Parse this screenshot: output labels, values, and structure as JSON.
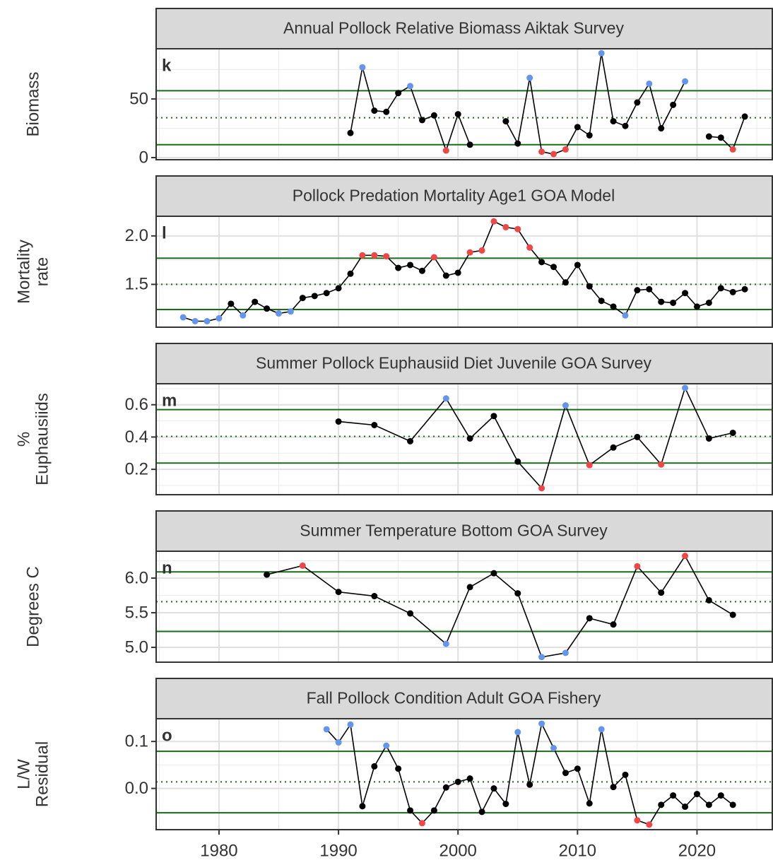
{
  "chart_data": [
    {
      "type": "line",
      "title": "Annual Pollock Relative Biomass Aiktak Survey",
      "annotation": "k",
      "ylabel": [
        "Biomass"
      ],
      "x": [
        1991,
        1992,
        1993,
        1994,
        1995,
        1996,
        1997,
        1998,
        1999,
        2000,
        2001,
        2002,
        2003,
        2004,
        2005,
        2006,
        2007,
        2008,
        2009,
        2010,
        2011,
        2012,
        2013,
        2014,
        2015,
        2016,
        2017,
        2018,
        2019,
        2020,
        2021,
        2022,
        2023,
        2024
      ],
      "values": [
        21,
        77,
        40,
        39,
        55,
        61,
        32,
        36,
        6,
        37,
        11,
        null,
        null,
        31,
        12,
        68,
        5,
        3,
        7,
        26,
        19,
        89,
        31,
        27,
        47,
        63,
        25,
        45,
        65,
        null,
        18,
        17,
        7,
        35
      ],
      "point_colors": [
        "#000000",
        "#6495ED",
        "#000000",
        "#000000",
        "#000000",
        "#6495ED",
        "#000000",
        "#000000",
        "#F04646",
        "#000000",
        "#000000",
        null,
        null,
        "#000000",
        "#000000",
        "#6495ED",
        "#F04646",
        "#F04646",
        "#F04646",
        "#000000",
        "#000000",
        "#6495ED",
        "#000000",
        "#000000",
        "#000000",
        "#6495ED",
        "#000000",
        "#000000",
        "#6495ED",
        null,
        "#000000",
        "#000000",
        "#F04646",
        "#000000"
      ],
      "upper": 57,
      "mean": 34,
      "lower": 11,
      "ref_color": "#1a6b1a",
      "color": "#000000",
      "xlim": [
        1974.74,
        2026.3
      ],
      "xticks": [
        1980,
        1990,
        2000,
        2010,
        2020
      ],
      "ylim": [
        -1.8,
        92.8
      ],
      "yticks": [
        0,
        50
      ],
      "grid": true
    },
    {
      "type": "line",
      "title": "Pollock Predation Mortality Age1 GOA Model",
      "annotation": "l",
      "ylabel": [
        "Mortality",
        "rate"
      ],
      "x": [
        1977,
        1978,
        1979,
        1980,
        1981,
        1982,
        1983,
        1984,
        1985,
        1986,
        1987,
        1988,
        1989,
        1990,
        1991,
        1992,
        1993,
        1994,
        1995,
        1996,
        1997,
        1998,
        1999,
        2000,
        2001,
        2002,
        2003,
        2004,
        2005,
        2006,
        2007,
        2008,
        2009,
        2010,
        2011,
        2012,
        2013,
        2014,
        2015,
        2016,
        2017,
        2018,
        2019,
        2020,
        2021,
        2022,
        2023,
        2024
      ],
      "values": [
        1.16,
        1.12,
        1.12,
        1.15,
        1.3,
        1.18,
        1.32,
        1.25,
        1.2,
        1.22,
        1.36,
        1.38,
        1.41,
        1.46,
        1.61,
        1.8,
        1.8,
        1.79,
        1.67,
        1.7,
        1.64,
        1.78,
        1.59,
        1.62,
        1.83,
        1.85,
        2.15,
        2.09,
        2.07,
        1.88,
        1.73,
        1.68,
        1.52,
        1.7,
        1.48,
        1.33,
        1.27,
        1.18,
        1.44,
        1.45,
        1.32,
        1.31,
        1.41,
        1.27,
        1.31,
        1.46,
        1.42,
        1.45
      ],
      "point_colors": [
        "#6495ED",
        "#6495ED",
        "#6495ED",
        "#6495ED",
        "#000000",
        "#6495ED",
        "#000000",
        "#000000",
        "#6495ED",
        "#6495ED",
        "#000000",
        "#000000",
        "#000000",
        "#000000",
        "#000000",
        "#F04646",
        "#F04646",
        "#F04646",
        "#000000",
        "#000000",
        "#000000",
        "#F04646",
        "#000000",
        "#000000",
        "#F04646",
        "#F04646",
        "#F04646",
        "#F04646",
        "#F04646",
        "#F04646",
        "#000000",
        "#000000",
        "#000000",
        "#000000",
        "#000000",
        "#000000",
        "#000000",
        "#6495ED",
        "#000000",
        "#000000",
        "#000000",
        "#000000",
        "#000000",
        "#000000",
        "#000000",
        "#000000",
        "#000000",
        "#000000"
      ],
      "upper": 1.77,
      "mean": 1.5,
      "lower": 1.24,
      "ref_color": "#1a6b1a",
      "color": "#000000",
      "xlim": [
        1974.74,
        2026.3
      ],
      "xticks": [
        1980,
        1990,
        2000,
        2010,
        2020
      ],
      "ylim": [
        1.058,
        2.203
      ],
      "yticks": [
        1.5,
        {
          "value": 2,
          "label": "2.0"
        }
      ],
      "grid": true
    },
    {
      "type": "line",
      "title": "Summer Pollock Euphausiid Diet Juvenile GOA Survey",
      "annotation": "m",
      "ylabel": [
        "%",
        "Euphausiids"
      ],
      "x": [
        1990,
        1993,
        1996,
        1999,
        2001,
        2003,
        2005,
        2007,
        2009,
        2011,
        2013,
        2015,
        2017,
        2019,
        2021,
        2023
      ],
      "values": [
        0.496,
        0.474,
        0.374,
        0.639,
        0.391,
        0.53,
        0.248,
        0.083,
        0.596,
        0.226,
        0.335,
        0.4,
        0.23,
        0.704,
        0.391,
        0.426
      ],
      "point_colors": [
        "#000000",
        "#000000",
        "#000000",
        "#6495ED",
        "#000000",
        "#000000",
        "#000000",
        "#F04646",
        "#6495ED",
        "#F04646",
        "#000000",
        "#000000",
        "#F04646",
        "#6495ED",
        "#000000",
        "#000000"
      ],
      "upper": 0.57,
      "mean": 0.404,
      "lower": 0.239,
      "ref_color": "#1a6b1a",
      "color": "#000000",
      "xlim": [
        1974.74,
        2026.3
      ],
      "xticks": [
        1980,
        1990,
        2000,
        2010,
        2020
      ],
      "ylim": [
        0.043,
        0.73
      ],
      "yticks": [
        0.2,
        0.4,
        0.6
      ],
      "grid": true
    },
    {
      "type": "line",
      "title": "Summer Temperature Bottom GOA Survey",
      "annotation": "n",
      "ylabel": [
        "Degrees C"
      ],
      "x": [
        1984,
        1987,
        1990,
        1993,
        1996,
        1999,
        2001,
        2003,
        2005,
        2007,
        2009,
        2011,
        2013,
        2015,
        2017,
        2019,
        2021,
        2023
      ],
      "values": [
        6.05,
        6.18,
        5.8,
        5.74,
        5.49,
        5.05,
        5.87,
        6.07,
        5.78,
        4.86,
        4.92,
        5.42,
        5.33,
        6.17,
        5.79,
        6.32,
        5.68,
        5.47
      ],
      "point_colors": [
        "#000000",
        "#F04646",
        "#000000",
        "#000000",
        "#000000",
        "#6495ED",
        "#000000",
        "#000000",
        "#000000",
        "#6495ED",
        "#6495ED",
        "#000000",
        "#000000",
        "#F04646",
        "#000000",
        "#F04646",
        "#000000",
        "#000000"
      ],
      "upper": 6.09,
      "mean": 5.66,
      "lower": 5.23,
      "ref_color": "#1a6b1a",
      "color": "#000000",
      "xlim": [
        1974.74,
        2026.3
      ],
      "xticks": [
        1980,
        1990,
        2000,
        2010,
        2020
      ],
      "ylim": [
        4.786,
        6.388
      ],
      "yticks": [
        {
          "value": 5,
          "label": "5.0"
        },
        5.5,
        {
          "value": 6,
          "label": "6.0"
        }
      ],
      "grid": true
    },
    {
      "type": "line",
      "title": "Fall Pollock Condition Adult GOA Fishery",
      "annotation": "o",
      "ylabel": [
        "L/W",
        "Residual"
      ],
      "x": [
        1989,
        1990,
        1991,
        1992,
        1993,
        1994,
        1995,
        1996,
        1997,
        1998,
        1999,
        2000,
        2001,
        2002,
        2003,
        2004,
        2005,
        2006,
        2007,
        2008,
        2009,
        2010,
        2011,
        2012,
        2013,
        2014,
        2015,
        2016,
        2017,
        2018,
        2019,
        2020,
        2021,
        2022,
        2023
      ],
      "values": [
        0.126,
        0.098,
        0.136,
        -0.038,
        0.047,
        0.091,
        0.042,
        -0.047,
        -0.074,
        -0.047,
        0.002,
        0.014,
        0.021,
        -0.05,
        0.0,
        -0.033,
        0.12,
        0.008,
        0.138,
        0.086,
        0.033,
        0.042,
        -0.032,
        0.126,
        0.003,
        0.029,
        -0.068,
        -0.077,
        -0.035,
        -0.015,
        -0.039,
        -0.012,
        -0.035,
        -0.015,
        -0.035
      ],
      "point_colors": [
        "#6495ED",
        "#6495ED",
        "#6495ED",
        "#000000",
        "#000000",
        "#6495ED",
        "#000000",
        "#000000",
        "#F04646",
        "#000000",
        "#000000",
        "#000000",
        "#000000",
        "#000000",
        "#000000",
        "#000000",
        "#6495ED",
        "#000000",
        "#6495ED",
        "#6495ED",
        "#000000",
        "#000000",
        "#000000",
        "#6495ED",
        "#000000",
        "#000000",
        "#F04646",
        "#F04646",
        "#000000",
        "#000000",
        "#000000",
        "#000000",
        "#000000",
        "#000000",
        "#000000"
      ],
      "upper": 0.079,
      "mean": 0.014,
      "lower": -0.052,
      "ref_color": "#1a6b1a",
      "color": "#000000",
      "xlim": [
        1974.74,
        2026.3
      ],
      "xticks": [
        1980,
        1990,
        2000,
        2010,
        2020
      ],
      "ylim": [
        -0.0879,
        0.1485
      ],
      "yticks": [
        {
          "value": 0,
          "label": "0.0"
        },
        0.1
      ],
      "grid": true
    }
  ]
}
